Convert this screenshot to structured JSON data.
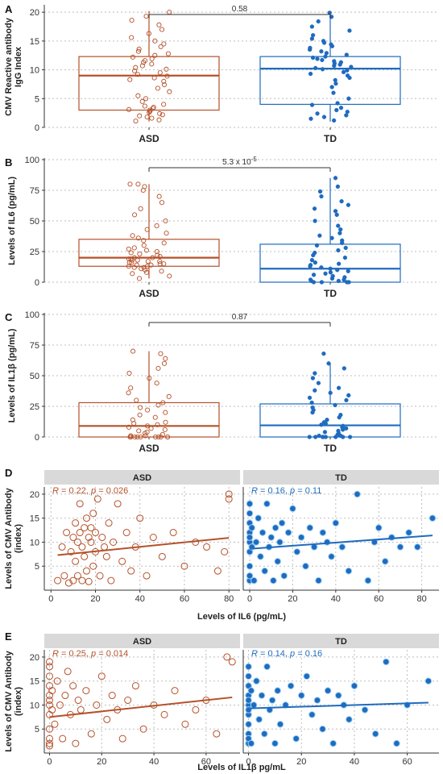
{
  "colors": {
    "asd": "#b5512a",
    "td": "#1f6bbf",
    "strip_bg": "#d9d9d9"
  },
  "chart_data": [
    {
      "panel": "A",
      "type": "box",
      "ylabel": "CMV Reactive antibody IgG Index",
      "ylabel_lines": [
        "CMV Reactive antibody",
        "IgG Index"
      ],
      "categories": [
        "ASD",
        "TD"
      ],
      "ylim": [
        0,
        21
      ],
      "yticks": [
        0,
        5,
        10,
        15,
        20
      ],
      "p_value": "0.58",
      "boxes": [
        {
          "name": "ASD",
          "q1": 3.0,
          "median": 9.0,
          "q3": 12.3,
          "whisker_low": 1.0,
          "whisker_high": 20.2
        },
        {
          "name": "TD",
          "q1": 4.0,
          "median": 10.2,
          "q3": 12.3,
          "whisker_low": 1.0,
          "whisker_high": 19.8
        }
      ],
      "points": [
        [
          1.1,
          1.3,
          1.6,
          1.8,
          2.0,
          2.2,
          2.4,
          2.6,
          2.8,
          3.0,
          3.1,
          3.3,
          3.5,
          3.7,
          4.0,
          4.5,
          5.0,
          5.5,
          6.2,
          6.8,
          7.4,
          8.0,
          8.3,
          8.6,
          8.9,
          9.2,
          9.5,
          9.8,
          10.1,
          10.4,
          10.7,
          11.0,
          11.3,
          11.6,
          11.9,
          12.2,
          12.5,
          12.8,
          13.2,
          13.6,
          14.0,
          14.5,
          15.0,
          15.6,
          16.3,
          17.0,
          17.8,
          18.6,
          19.3,
          20.0
        ],
        [
          1.2,
          1.5,
          1.8,
          2.1,
          2.4,
          2.7,
          3.0,
          3.4,
          3.9,
          4.2,
          5.0,
          6.0,
          7.0,
          7.6,
          8.2,
          8.6,
          9.0,
          9.3,
          9.6,
          9.9,
          10.1,
          10.3,
          10.5,
          10.7,
          10.9,
          11.1,
          11.3,
          11.5,
          11.7,
          11.9,
          12.1,
          12.3,
          12.6,
          12.9,
          13.2,
          13.5,
          13.8,
          14.1,
          14.4,
          14.7,
          15.0,
          15.4,
          16.0,
          16.8,
          17.5,
          18.4,
          19.2,
          19.9
        ]
      ]
    },
    {
      "panel": "B",
      "type": "box",
      "ylabel": "Levels of IL6 (pg/mL)",
      "ylabel_lines": [
        "Levels of IL6 (pg/mL)"
      ],
      "categories": [
        "ASD",
        "TD"
      ],
      "ylim": [
        0,
        100
      ],
      "yticks": [
        0,
        25,
        50,
        75,
        100
      ],
      "p_value": "5.3 x 10",
      "p_exp": "-5",
      "boxes": [
        {
          "name": "ASD",
          "q1": 13.0,
          "median": 20.0,
          "q3": 35.0,
          "whisker_low": 3.0,
          "whisker_high": 80.0
        },
        {
          "name": "TD",
          "q1": 0.0,
          "median": 11.0,
          "q3": 31.0,
          "whisker_low": 0.0,
          "whisker_high": 85.0
        }
      ],
      "points": [
        [
          3,
          5,
          7,
          8,
          9,
          10,
          11,
          12,
          12,
          13,
          13,
          14,
          14,
          15,
          15,
          16,
          16,
          17,
          17,
          18,
          18,
          19,
          19,
          20,
          20,
          21,
          22,
          23,
          24,
          25,
          26,
          27,
          28,
          30,
          32,
          34,
          36,
          38,
          40,
          43,
          46,
          50,
          55,
          60,
          65,
          70,
          75,
          78,
          80,
          80
        ],
        [
          0,
          0,
          0,
          0,
          1,
          1,
          2,
          2,
          3,
          4,
          5,
          6,
          7,
          8,
          9,
          10,
          11,
          12,
          13,
          14,
          15,
          16,
          18,
          20,
          22,
          24,
          26,
          28,
          30,
          32,
          34,
          36,
          38,
          40,
          43,
          46,
          50,
          55,
          58,
          60,
          63,
          66,
          70,
          74,
          78,
          85
        ]
      ]
    },
    {
      "panel": "C",
      "type": "box",
      "ylabel": "Levels of IL1β (pg/mL)",
      "ylabel_lines": [
        "Levels of IL1β (pg/mL)"
      ],
      "categories": [
        "ASD",
        "TD"
      ],
      "ylim": [
        0,
        100
      ],
      "yticks": [
        0,
        25,
        50,
        75,
        100
      ],
      "p_value": "0.87",
      "boxes": [
        {
          "name": "ASD",
          "q1": 0.0,
          "median": 9.0,
          "q3": 28.0,
          "whisker_low": 0.0,
          "whisker_high": 70.0
        },
        {
          "name": "TD",
          "q1": 0.0,
          "median": 9.5,
          "q3": 27.0,
          "whisker_low": 0.0,
          "whisker_high": 60.0
        }
      ],
      "points": [
        [
          0,
          0,
          0,
          0,
          0,
          0,
          0,
          0,
          0,
          0,
          1,
          1,
          2,
          3,
          4,
          5,
          6,
          7,
          8,
          9,
          10,
          11,
          12,
          14,
          16,
          18,
          20,
          22,
          24,
          26,
          28,
          30,
          33,
          36,
          40,
          44,
          48,
          52,
          56,
          60,
          64,
          68,
          70
        ],
        [
          0,
          0,
          0,
          0,
          0,
          0,
          0,
          0,
          1,
          1,
          2,
          3,
          4,
          5,
          6,
          7,
          8,
          9,
          10,
          11,
          12,
          14,
          16,
          18,
          20,
          22,
          24,
          26,
          28,
          30,
          32,
          34,
          36,
          38,
          40,
          44,
          48,
          52,
          56,
          60,
          68
        ]
      ]
    },
    {
      "panel": "D",
      "type": "scatter",
      "ylabel": "Levels of CMV Antibody (index)",
      "ylabel_lines": [
        "Levels of CMV Antibody",
        "(index)"
      ],
      "xlabel": "Levels of IL6 (pg/mL)",
      "ylim": [
        0,
        21.5
      ],
      "yticks": [
        5,
        10,
        15,
        20
      ],
      "facets": [
        {
          "name": "ASD",
          "R": "0.22",
          "p": "0.026",
          "xlim": [
            -3,
            85
          ],
          "xticks": [
            0,
            20,
            40,
            60,
            80
          ],
          "fit": [
            [
              3,
              7.3
            ],
            [
              80,
              10.9
            ]
          ],
          "x": [
            3,
            5,
            6,
            7,
            8,
            9,
            10,
            10,
            11,
            11,
            12,
            12,
            13,
            13,
            14,
            14,
            15,
            15,
            16,
            16,
            17,
            17,
            18,
            18,
            19,
            19,
            20,
            20,
            21,
            22,
            23,
            24,
            25,
            26,
            27,
            28,
            30,
            32,
            34,
            36,
            38,
            40,
            43,
            46,
            50,
            55,
            60,
            65,
            70,
            75,
            78,
            80,
            80
          ],
          "y": [
            2,
            9,
            3,
            12,
            1.5,
            8,
            11,
            2,
            14,
            6,
            10,
            3,
            12,
            18,
            9,
            2,
            13,
            7,
            15,
            4,
            11,
            1.8,
            10,
            13,
            16,
            5,
            12,
            8,
            19,
            3,
            11,
            9,
            7,
            14,
            2,
            10,
            18,
            6,
            12,
            4,
            9,
            15,
            3,
            11,
            7,
            12,
            5,
            10,
            9,
            4,
            8,
            20,
            19
          ]
        },
        {
          "name": "TD",
          "R": "0.16",
          "p": "0.11",
          "xlim": [
            -3,
            88
          ],
          "xticks": [
            0,
            20,
            40,
            60,
            80
          ],
          "fit": [
            [
              0,
              8.6
            ],
            [
              85,
              11.4
            ]
          ],
          "x": [
            0,
            0,
            0,
            0,
            0,
            0,
            0,
            0,
            0,
            0,
            1,
            1,
            2,
            3,
            4,
            5,
            6,
            7,
            8,
            9,
            10,
            11,
            12,
            13,
            14,
            15,
            16,
            18,
            20,
            22,
            24,
            26,
            28,
            30,
            32,
            34,
            36,
            38,
            40,
            43,
            46,
            50,
            55,
            58,
            60,
            63,
            66,
            70,
            74,
            78,
            85
          ],
          "y": [
            2,
            5,
            8,
            10,
            12,
            14,
            16,
            18,
            3,
            11,
            9,
            13,
            2,
            10,
            15,
            7,
            12,
            4,
            18,
            9,
            11,
            2,
            13,
            6,
            10,
            14,
            3,
            12,
            17,
            8,
            11,
            5,
            13,
            9,
            2,
            12,
            10,
            7,
            14,
            9,
            4,
            20,
            2,
            10,
            13,
            6,
            11,
            9,
            12,
            9,
            15
          ]
        }
      ]
    },
    {
      "panel": "E",
      "type": "scatter",
      "ylabel": "Levels of CMV Antibody (index)",
      "ylabel_lines": [
        "Levels of CMV Antibody",
        "(index)"
      ],
      "xlabel": "Levels of IL1β pg/mL",
      "ylim": [
        0,
        21.5
      ],
      "yticks": [
        5,
        10,
        15,
        20
      ],
      "facets": [
        {
          "name": "ASD",
          "R": "0.25",
          "p": "0.014",
          "xlim": [
            -2,
            73
          ],
          "xticks": [
            0,
            20,
            40,
            60
          ],
          "fit": [
            [
              0,
              7.5
            ],
            [
              70,
              11.6
            ]
          ],
          "x": [
            0,
            0,
            0,
            0,
            0,
            0,
            0,
            0,
            0,
            0,
            0,
            0,
            1,
            1,
            2,
            3,
            4,
            5,
            6,
            7,
            8,
            9,
            10,
            11,
            12,
            14,
            16,
            18,
            20,
            22,
            24,
            26,
            28,
            30,
            33,
            36,
            40,
            44,
            48,
            52,
            56,
            60,
            64,
            68,
            70
          ],
          "y": [
            2,
            3,
            5,
            8,
            10,
            12,
            14,
            16,
            18,
            19,
            1.5,
            11,
            9,
            13,
            6,
            15,
            10,
            3,
            12,
            17,
            8,
            14,
            2,
            11,
            9,
            13,
            4,
            10,
            16,
            7,
            12,
            9,
            3,
            11,
            14,
            5,
            10,
            8,
            13,
            6,
            9,
            11,
            4,
            20,
            19
          ]
        },
        {
          "name": "TD",
          "R": "0.14",
          "p": "0.16",
          "xlim": [
            -2,
            72
          ],
          "xticks": [
            0,
            20,
            40,
            60
          ],
          "fit": [
            [
              0,
              9.3
            ],
            [
              68,
              10.5
            ]
          ],
          "x": [
            0,
            0,
            0,
            0,
            0,
            0,
            0,
            0,
            0,
            0,
            0,
            0,
            1,
            1,
            2,
            3,
            4,
            5,
            6,
            7,
            8,
            9,
            10,
            11,
            12,
            14,
            16,
            18,
            20,
            22,
            24,
            26,
            28,
            30,
            32,
            34,
            36,
            38,
            40,
            44,
            48,
            52,
            56,
            60,
            68
          ],
          "y": [
            2,
            4,
            6,
            8,
            10,
            12,
            14,
            16,
            18,
            3,
            11,
            9,
            13,
            2,
            10,
            15,
            7,
            12,
            4,
            18,
            9,
            11,
            2,
            13,
            6,
            10,
            14,
            3,
            12,
            16,
            8,
            11,
            5,
            13,
            2,
            12,
            10,
            7,
            14,
            9,
            4,
            19,
            2,
            10,
            15
          ]
        }
      ]
    }
  ]
}
